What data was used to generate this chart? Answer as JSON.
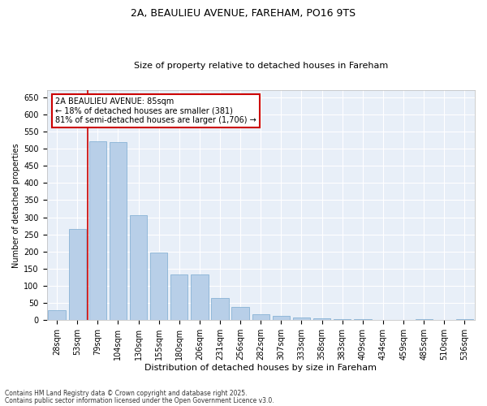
{
  "title_line1": "2A, BEAULIEU AVENUE, FAREHAM, PO16 9TS",
  "title_line2": "Size of property relative to detached houses in Fareham",
  "xlabel": "Distribution of detached houses by size in Fareham",
  "ylabel": "Number of detached properties",
  "categories": [
    "28sqm",
    "53sqm",
    "79sqm",
    "104sqm",
    "130sqm",
    "155sqm",
    "180sqm",
    "206sqm",
    "231sqm",
    "256sqm",
    "282sqm",
    "307sqm",
    "333sqm",
    "358sqm",
    "383sqm",
    "409sqm",
    "434sqm",
    "459sqm",
    "485sqm",
    "510sqm",
    "536sqm"
  ],
  "values": [
    29,
    265,
    522,
    520,
    305,
    197,
    133,
    133,
    65,
    38,
    18,
    12,
    7,
    6,
    3,
    2,
    0,
    0,
    2,
    0,
    2
  ],
  "bar_color": "#b8cfe8",
  "bar_edge_color": "#7aaad0",
  "red_line_x": 1.5,
  "annotation_line1": "2A BEAULIEU AVENUE: 85sqm",
  "annotation_line2": "← 18% of detached houses are smaller (381)",
  "annotation_line3": "81% of semi-detached houses are larger (1,706) →",
  "annotation_box_color": "#ffffff",
  "annotation_box_edge_color": "#cc0000",
  "red_line_color": "#cc0000",
  "ylim": [
    0,
    670
  ],
  "yticks": [
    0,
    50,
    100,
    150,
    200,
    250,
    300,
    350,
    400,
    450,
    500,
    550,
    600,
    650
  ],
  "footnote_line1": "Contains HM Land Registry data © Crown copyright and database right 2025.",
  "footnote_line2": "Contains public sector information licensed under the Open Government Licence v3.0.",
  "bg_color": "#e8eff8",
  "fig_bg_color": "#ffffff",
  "title_fontsize": 9,
  "subtitle_fontsize": 8,
  "xlabel_fontsize": 8,
  "ylabel_fontsize": 7,
  "tick_fontsize": 7,
  "annot_fontsize": 7,
  "footnote_fontsize": 5.5
}
